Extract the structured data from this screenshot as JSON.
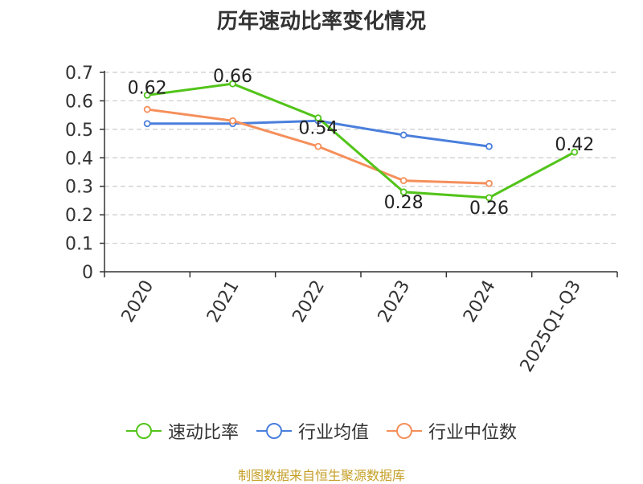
{
  "chart_data": {
    "type": "line",
    "title": "历年速动比率变化情况",
    "categories": [
      "2020",
      "2021",
      "2022",
      "2023",
      "2024",
      "2025Q1-Q3"
    ],
    "series": [
      {
        "name": "速动比率",
        "color": "#52c41a",
        "values": [
          0.62,
          0.66,
          0.54,
          0.28,
          0.26,
          0.42
        ],
        "show_labels": true
      },
      {
        "name": "行业均值",
        "color": "#4a7fdc",
        "values": [
          0.52,
          0.52,
          0.53,
          0.48,
          0.44,
          null
        ],
        "show_labels": false
      },
      {
        "name": "行业中位数",
        "color": "#f58f5b",
        "values": [
          0.57,
          0.53,
          0.44,
          0.32,
          0.31,
          null
        ],
        "show_labels": false
      }
    ],
    "y_ticks": [
      "0",
      "0.1",
      "0.2",
      "0.3",
      "0.4",
      "0.5",
      "0.6",
      "0.7"
    ],
    "ylim": [
      0,
      0.7
    ],
    "grid": true,
    "legend_position": "bottom"
  },
  "source_note": "制图数据来自恒生聚源数据库"
}
